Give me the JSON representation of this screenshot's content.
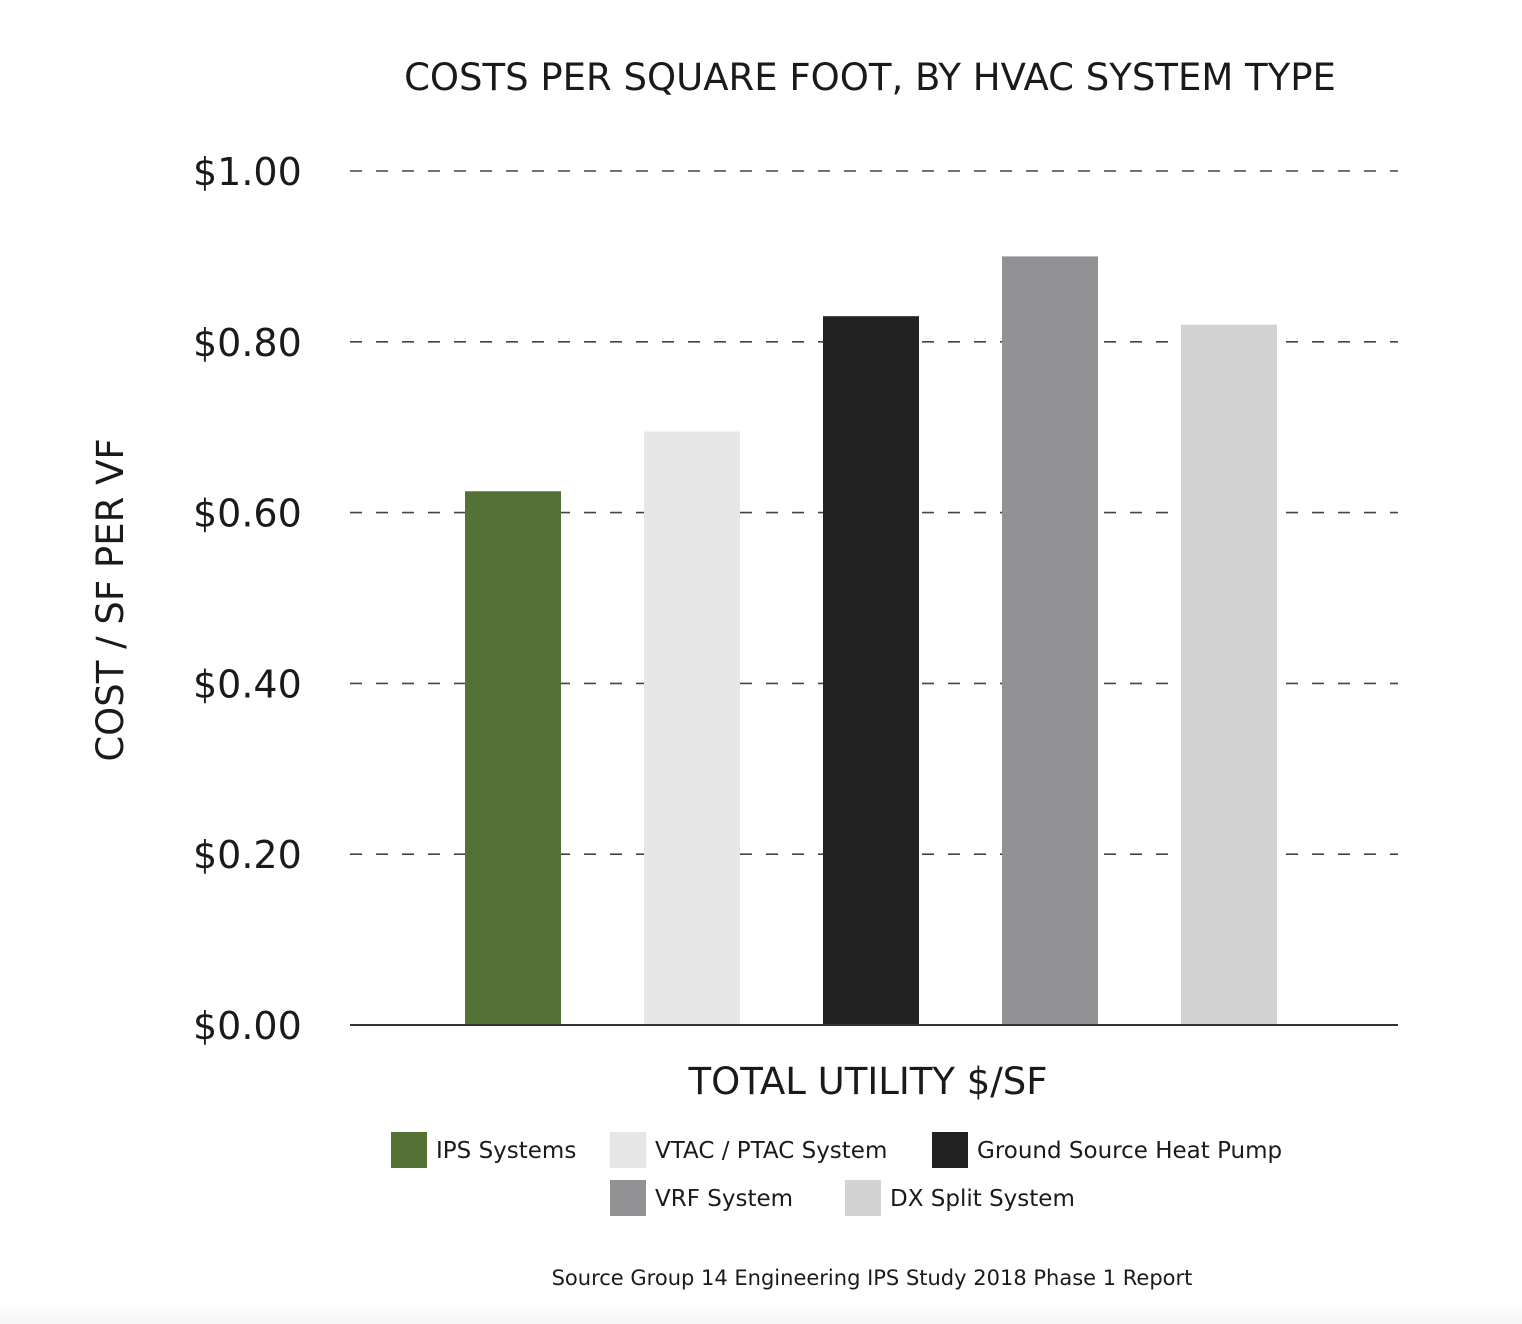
{
  "chart_data": {
    "type": "bar",
    "title": "COSTS PER SQUARE FOOT, BY HVAC SYSTEM TYPE",
    "xlabel": "TOTAL UTILITY $/SF",
    "ylabel": "COST / SF PER VF",
    "ylim": [
      0,
      1.0
    ],
    "yticks": [
      {
        "value": 0.0,
        "label": "$0.00"
      },
      {
        "value": 0.2,
        "label": "$0.20"
      },
      {
        "value": 0.4,
        "label": "$0.40"
      },
      {
        "value": 0.6,
        "label": "$0.60"
      },
      {
        "value": 0.8,
        "label": "$0.80"
      },
      {
        "value": 1.0,
        "label": "$1.00"
      }
    ],
    "grid": "dashed-horizontal",
    "legend_position": "bottom",
    "series": [
      {
        "name": "IPS Systems",
        "value": 0.625,
        "color": "#547235"
      },
      {
        "name": "VTAC / PTAC System",
        "value": 0.695,
        "color": "#e6e6e6"
      },
      {
        "name": "Ground Source Heat Pump",
        "value": 0.83,
        "color": "#222222"
      },
      {
        "name": "VRF System",
        "value": 0.9,
        "color": "#929295"
      },
      {
        "name": "DX Split System",
        "value": 0.82,
        "color": "#d3d3d3"
      }
    ],
    "source": "Source Group 14 Engineering IPS Study 2018 Phase 1 Report"
  }
}
